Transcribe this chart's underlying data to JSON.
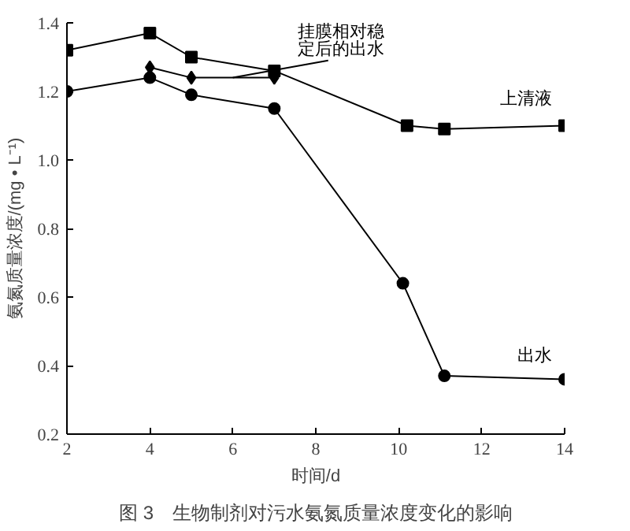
{
  "chart_data": {
    "type": "line",
    "xlabel": "时间/d",
    "ylabel": "氨氮质量浓度/(mg • L⁻¹)",
    "annotations": [
      "图 3　生物制剂对污水氨氮质量浓度变化的影响"
    ],
    "xlim": [
      2,
      14
    ],
    "xticks": [
      2,
      4,
      6,
      8,
      10,
      12,
      14
    ],
    "ylim": [
      0.2,
      1.4
    ],
    "yticks": [
      0.2,
      0.4,
      0.6,
      0.8,
      {
        "value": 1.0,
        "label": "1.0"
      },
      1.2,
      1.4
    ],
    "grid": false,
    "line_style": "solid",
    "series": [
      {
        "name": "上清液",
        "color": "#000000",
        "marker": "square",
        "x": [
          2,
          4,
          5,
          7,
          10.2,
          11.1,
          14
        ],
        "values": [
          1.32,
          1.37,
          1.3,
          1.26,
          1.1,
          1.09,
          1.1
        ]
      },
      {
        "name": "出水",
        "color": "#000000",
        "marker": "circle",
        "x": [
          2,
          4,
          5,
          7,
          10.1,
          11.1,
          14
        ],
        "values": [
          1.2,
          1.24,
          1.19,
          1.15,
          0.64,
          0.37,
          0.36
        ]
      },
      {
        "name": "挂膜相对稳定后的出水",
        "color": "#000000",
        "marker": "diamond",
        "x": [
          4,
          5,
          7
        ],
        "values": [
          1.27,
          1.24,
          1.24
        ]
      }
    ]
  }
}
